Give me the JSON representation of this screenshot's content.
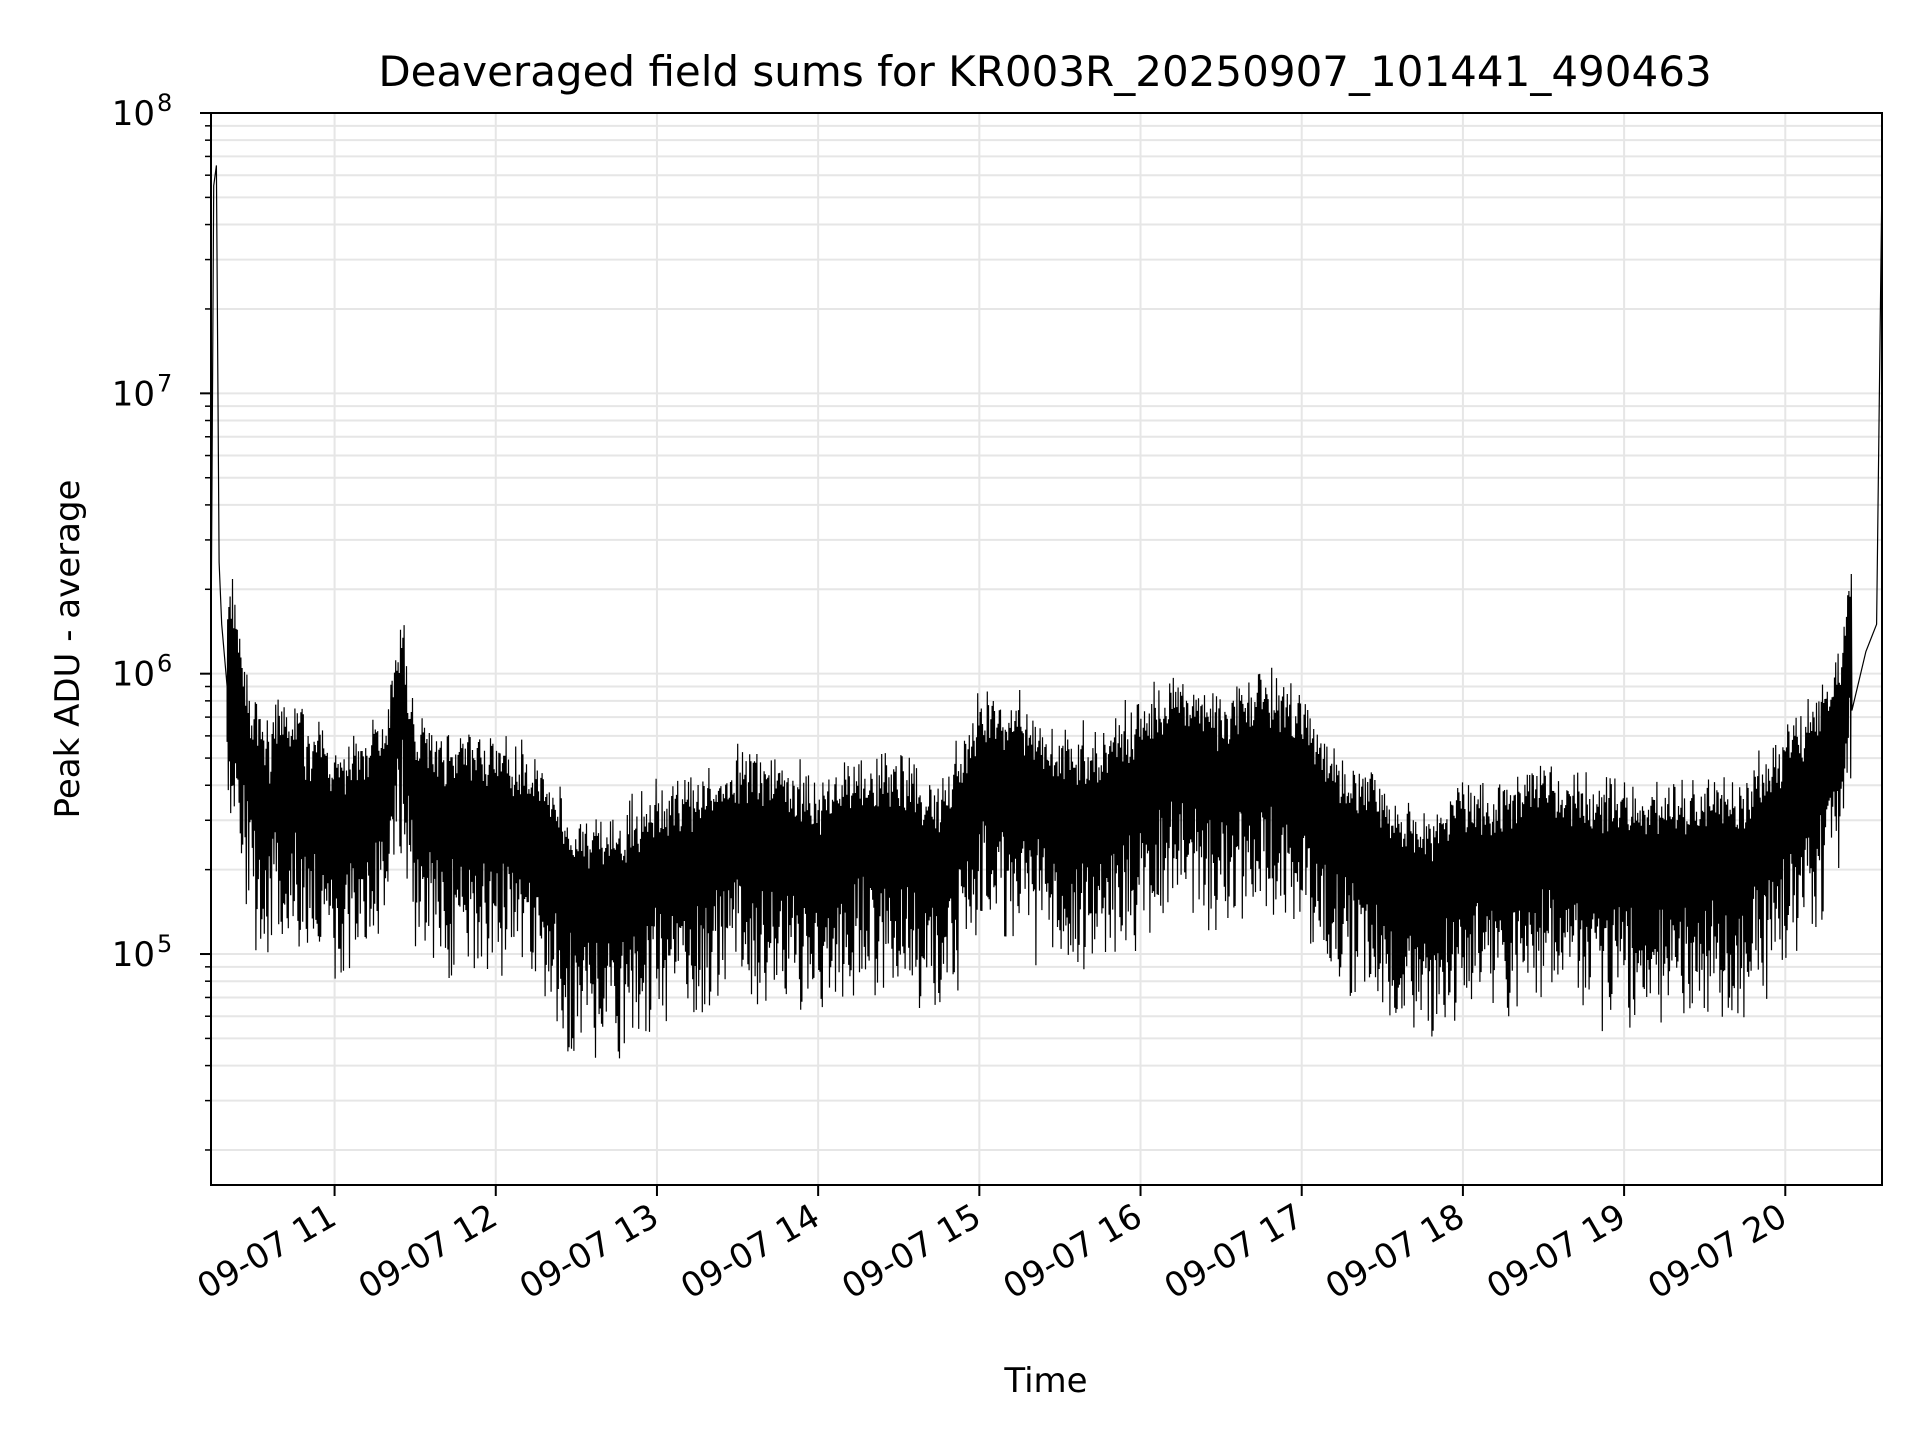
{
  "chart_data": {
    "type": "line",
    "title": "Deaveraged field sums for KR003R_20250907_101441_490463",
    "xlabel": "Time",
    "ylabel": "Peak ADU - average",
    "yscale": "log",
    "ylim": [
      15000,
      100000000
    ],
    "xlim": [
      "2025-09-07 10:14",
      "2025-09-07 20:36"
    ],
    "grid": true,
    "line_color": "#000000",
    "grid_color": "#e6e6e6",
    "x_ticks": [
      {
        "value": "2025-09-07 11:00",
        "label": "09-07 11"
      },
      {
        "value": "2025-09-07 12:00",
        "label": "09-07 12"
      },
      {
        "value": "2025-09-07 13:00",
        "label": "09-07 13"
      },
      {
        "value": "2025-09-07 14:00",
        "label": "09-07 14"
      },
      {
        "value": "2025-09-07 15:00",
        "label": "09-07 15"
      },
      {
        "value": "2025-09-07 16:00",
        "label": "09-07 16"
      },
      {
        "value": "2025-09-07 17:00",
        "label": "09-07 17"
      },
      {
        "value": "2025-09-07 18:00",
        "label": "09-07 18"
      },
      {
        "value": "2025-09-07 19:00",
        "label": "09-07 19"
      },
      {
        "value": "2025-09-07 20:00",
        "label": "09-07 20"
      }
    ],
    "y_ticks": [
      {
        "value": 100000,
        "base": "10",
        "exp": "5"
      },
      {
        "value": 1000000,
        "base": "10",
        "exp": "6"
      },
      {
        "value": 10000000,
        "base": "10",
        "exp": "7"
      },
      {
        "value": 100000000,
        "base": "10",
        "exp": "8"
      }
    ],
    "series": [
      {
        "x": [
          "2025-09-07 10:14",
          "2025-09-07 10:15",
          "2025-09-07 10:16",
          "2025-09-07 10:17",
          "2025-09-07 10:18",
          "2025-09-07 10:20",
          "2025-09-07 10:22",
          "2025-09-07 10:25",
          "2025-09-07 10:28",
          "2025-09-07 10:30",
          "2025-09-07 10:33",
          "2025-09-07 10:36",
          "2025-09-07 10:38",
          "2025-09-07 10:40",
          "2025-09-07 10:45",
          "2025-09-07 10:50",
          "2025-09-07 10:55",
          "2025-09-07 11:00",
          "2025-09-07 11:10",
          "2025-09-07 11:20",
          "2025-09-07 11:25",
          "2025-09-07 11:30",
          "2025-09-07 11:40",
          "2025-09-07 11:50",
          "2025-09-07 12:00",
          "2025-09-07 12:15",
          "2025-09-07 12:30",
          "2025-09-07 12:45",
          "2025-09-07 13:00",
          "2025-09-07 13:15",
          "2025-09-07 13:30",
          "2025-09-07 13:45",
          "2025-09-07 14:00",
          "2025-09-07 14:15",
          "2025-09-07 14:30",
          "2025-09-07 14:45",
          "2025-09-07 15:00",
          "2025-09-07 15:15",
          "2025-09-07 15:30",
          "2025-09-07 15:45",
          "2025-09-07 16:00",
          "2025-09-07 16:15",
          "2025-09-07 16:30",
          "2025-09-07 16:45",
          "2025-09-07 17:00",
          "2025-09-07 17:15",
          "2025-09-07 17:30",
          "2025-09-07 17:45",
          "2025-09-07 18:00",
          "2025-09-07 18:15",
          "2025-09-07 18:30",
          "2025-09-07 18:45",
          "2025-09-07 19:00",
          "2025-09-07 19:15",
          "2025-09-07 19:30",
          "2025-09-07 19:45",
          "2025-09-07 19:50",
          "2025-09-07 20:00",
          "2025-09-07 20:10",
          "2025-09-07 20:15",
          "2025-09-07 20:20",
          "2025-09-07 20:25",
          "2025-09-07 20:30",
          "2025-09-07 20:34",
          "2025-09-07 20:36"
        ],
        "y": [
          1200000,
          55000000,
          65000000,
          2500000,
          1500000,
          900000,
          1100000,
          700000,
          450000,
          400000,
          350000,
          300000,
          450000,
          350000,
          400000,
          300000,
          350000,
          250000,
          300000,
          400000,
          800000,
          350000,
          300000,
          300000,
          300000,
          250000,
          150000,
          150000,
          200000,
          200000,
          250000,
          250000,
          200000,
          250000,
          250000,
          200000,
          400000,
          400000,
          300000,
          300000,
          400000,
          500000,
          400000,
          500000,
          400000,
          250000,
          200000,
          150000,
          200000,
          200000,
          250000,
          200000,
          200000,
          200000,
          200000,
          200000,
          250000,
          300000,
          400000,
          500000,
          600000,
          1400000,
          1200000,
          1500000,
          60000000
        ]
      }
    ]
  }
}
